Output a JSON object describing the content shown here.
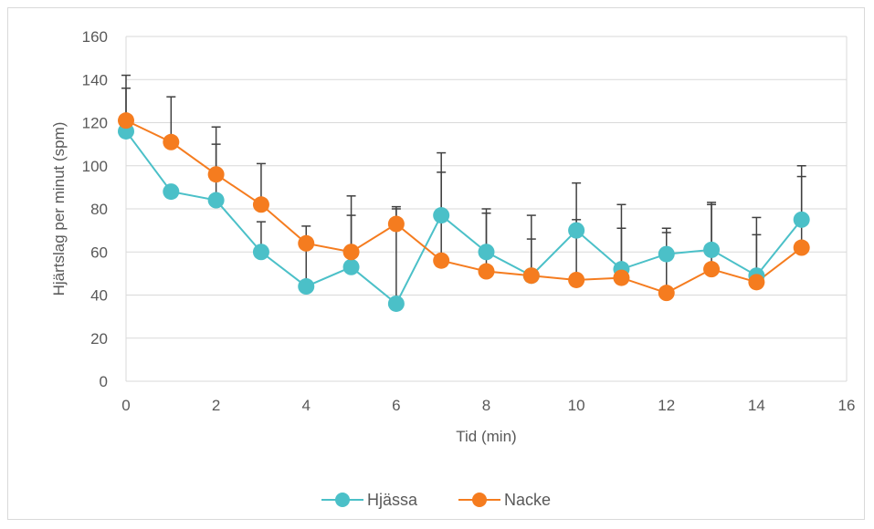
{
  "chart_data": {
    "type": "scatter",
    "title": "",
    "xlabel": "Tid (min)",
    "ylabel": "Hjärtslag per minut (spm)",
    "xlim": [
      0,
      16
    ],
    "ylim": [
      0,
      160
    ],
    "x_ticks": [
      "0",
      "2",
      "4",
      "6",
      "8",
      "10",
      "12",
      "14",
      "16"
    ],
    "y_ticks": [
      "0",
      "20",
      "40",
      "60",
      "80",
      "100",
      "120",
      "140",
      "160"
    ],
    "x_tick_values": [
      0,
      2,
      4,
      6,
      8,
      10,
      12,
      14,
      16
    ],
    "y_tick_values": [
      0,
      20,
      40,
      60,
      80,
      100,
      120,
      140,
      160
    ],
    "grid": "horizontal",
    "legend_position": "bottom",
    "series": [
      {
        "name": "Hjässa",
        "color": "#4bc0c8",
        "x": [
          0,
          1,
          2,
          3,
          4,
          5,
          6,
          7,
          8,
          9,
          10,
          11,
          12,
          13,
          14,
          15
        ],
        "y": [
          116,
          88,
          84,
          60,
          44,
          53,
          36,
          77,
          60,
          49,
          70,
          52,
          59,
          61,
          49,
          75
        ],
        "error_upper": [
          136,
          88,
          110,
          74,
          64,
          77,
          80,
          97,
          78,
          66,
          75,
          71,
          69,
          82,
          68,
          95
        ]
      },
      {
        "name": "Nacke",
        "color": "#f57c1f",
        "x": [
          0,
          1,
          2,
          3,
          4,
          5,
          6,
          7,
          8,
          9,
          10,
          11,
          12,
          13,
          14,
          15
        ],
        "y": [
          121,
          111,
          96,
          82,
          64,
          60,
          73,
          56,
          51,
          49,
          47,
          48,
          41,
          52,
          46,
          62
        ],
        "error_upper": [
          142,
          132,
          118,
          101,
          72,
          86,
          81,
          106,
          80,
          77,
          92,
          82,
          71,
          83,
          76,
          100
        ]
      }
    ]
  }
}
